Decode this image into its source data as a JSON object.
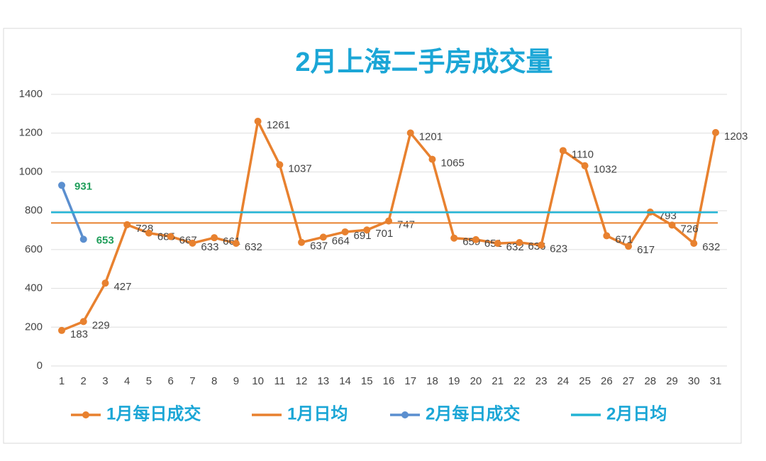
{
  "chart_data": {
    "type": "line",
    "title": "2月上海二手房成交量",
    "categories": [
      "1",
      "2",
      "3",
      "4",
      "5",
      "6",
      "7",
      "8",
      "9",
      "10",
      "11",
      "12",
      "13",
      "14",
      "15",
      "16",
      "17",
      "18",
      "19",
      "20",
      "21",
      "22",
      "23",
      "24",
      "25",
      "26",
      "27",
      "28",
      "29",
      "30",
      "31"
    ],
    "series": [
      {
        "name": "1月每日成交",
        "color": "#e8812f",
        "values": [
          183,
          229,
          427,
          728,
          685,
          667,
          633,
          661,
          632,
          1261,
          1037,
          637,
          664,
          691,
          701,
          747,
          1201,
          1065,
          659,
          651,
          632,
          636,
          623,
          1110,
          1032,
          671,
          617,
          793,
          726,
          632,
          1203
        ]
      },
      {
        "name": "1月日均",
        "color": "#e8812f",
        "value": 737
      },
      {
        "name": "2月每日成交",
        "color": "#5b8fcf",
        "values": [
          931,
          653,
          null,
          null,
          null,
          null,
          null,
          null,
          null,
          null,
          null,
          null,
          null,
          null,
          null,
          null,
          null,
          null,
          null,
          null,
          null,
          null,
          null,
          null,
          null,
          null,
          null,
          null,
          null,
          null,
          null
        ]
      },
      {
        "name": "2月日均",
        "color": "#22b3d4",
        "value": 792
      }
    ],
    "ylim": [
      0,
      1400
    ],
    "yticks": [
      0,
      200,
      400,
      600,
      800,
      1000,
      1200,
      1400
    ],
    "grid": true
  }
}
